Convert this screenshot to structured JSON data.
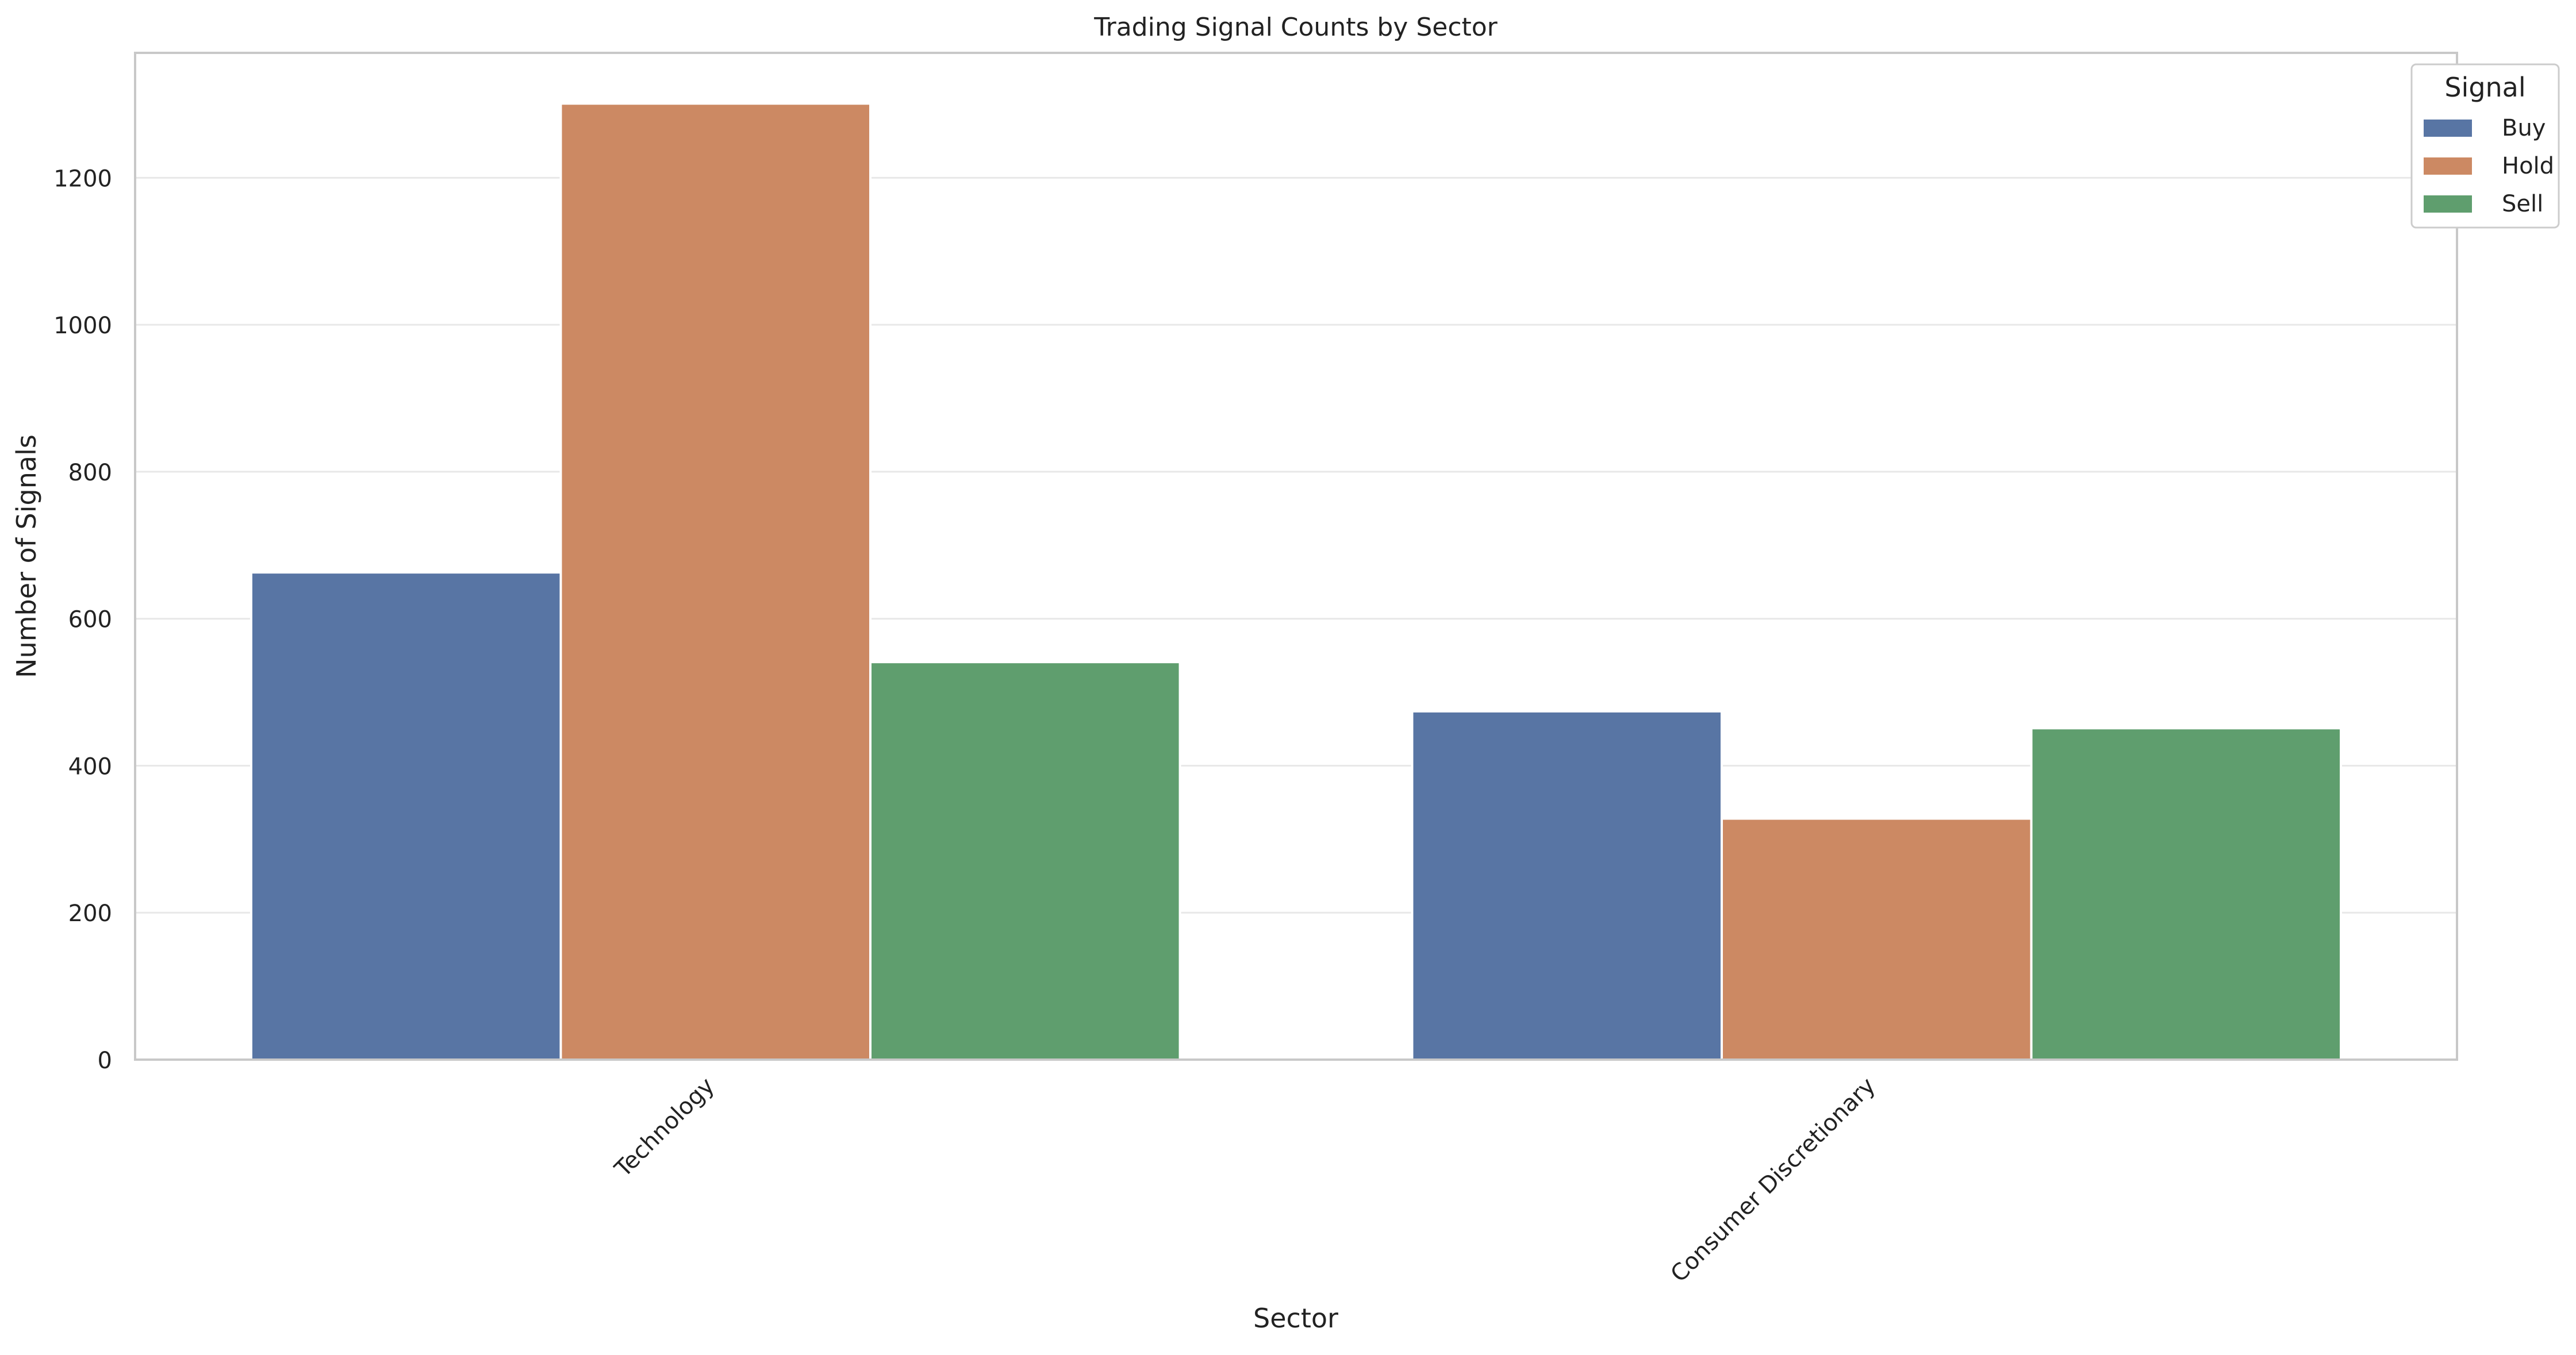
{
  "chart_data": {
    "type": "bar",
    "title": "Trading Signal Counts by Sector",
    "xlabel": "Sector",
    "ylabel": "Number of Signals",
    "categories": [
      "Technology",
      "Consumer Discretionary"
    ],
    "series": [
      {
        "name": "Buy",
        "color": "#5875a4",
        "values": [
          663,
          474
        ]
      },
      {
        "name": "Hold",
        "color": "#cc8963",
        "values": [
          1301,
          328
        ]
      },
      {
        "name": "Sell",
        "color": "#5f9e6e",
        "values": [
          541,
          451
        ]
      }
    ],
    "ylim": [
      0,
      1370
    ],
    "yticks": [
      0,
      200,
      400,
      600,
      800,
      1000,
      1200
    ],
    "grid": "horizontal",
    "legend": {
      "title": "Signal",
      "placement": "top-right"
    }
  }
}
